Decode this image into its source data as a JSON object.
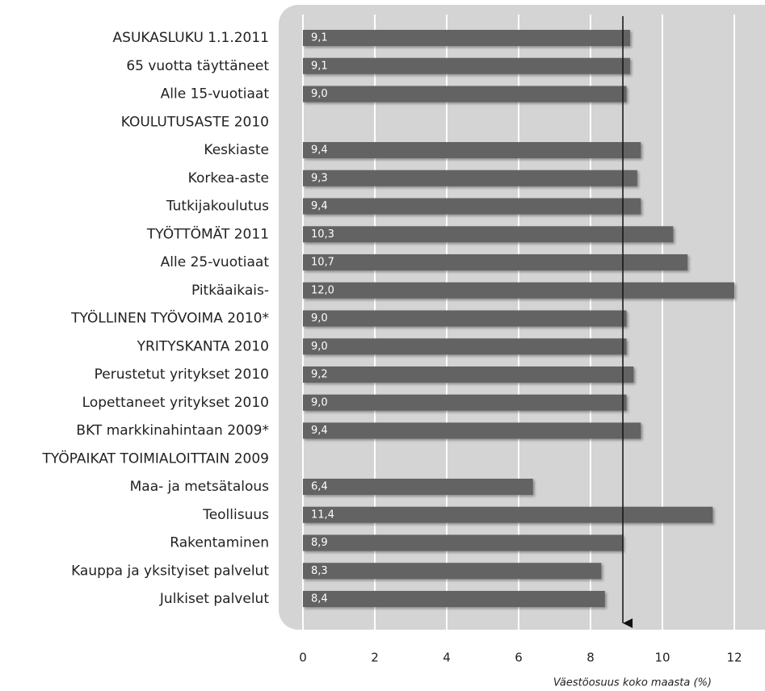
{
  "chart_data": {
    "type": "bar",
    "orientation": "horizontal",
    "categories": [
      "ASUKASLUKU 1.1.2011",
      "65 vuotta täyttäneet",
      "Alle 15-vuotiaat",
      "KOULUTUSASTE 2010",
      "Keskiaste",
      "Korkea-aste",
      "Tutkijakoulutus",
      "TYÖTTÖMÄT 2011",
      "Alle 25-vuotiaat",
      "Pitkäaikais-",
      "TYÖLLINEN TYÖVOIMA 2010*",
      "YRITYSKANTA 2010",
      "Perustetut yritykset 2010",
      "Lopettaneet yritykset 2010",
      "BKT markkinahintaan 2009*",
      "TYÖPAIKAT TOIMIALOITTAIN 2009",
      "Maa- ja metsätalous",
      "Teollisuus",
      "Rakentaminen",
      "Kauppa ja yksityiset palvelut",
      "Julkiset palvelut"
    ],
    "values": [
      9.1,
      9.1,
      9.0,
      null,
      9.4,
      9.3,
      9.4,
      10.3,
      10.7,
      12.0,
      9.0,
      9.0,
      9.2,
      9.0,
      9.4,
      null,
      6.4,
      11.4,
      8.9,
      8.3,
      8.4
    ],
    "value_labels": [
      "9,1",
      "9,1",
      "9,0",
      null,
      "9,4",
      "9,3",
      "9,4",
      "10,3",
      "10,7",
      "12,0",
      "9,0",
      "9,0",
      "9,2",
      "9,0",
      "9,4",
      null,
      "6,4",
      "11,4",
      "8,9",
      "8,3",
      "8,4"
    ],
    "color": "#646464",
    "xlim": [
      0,
      12
    ],
    "xticks": [
      0,
      2,
      4,
      6,
      8,
      10,
      12
    ],
    "grid": true,
    "xlabel": "Väestöosuus koko maasta (%)",
    "reference_line": 8.9
  }
}
